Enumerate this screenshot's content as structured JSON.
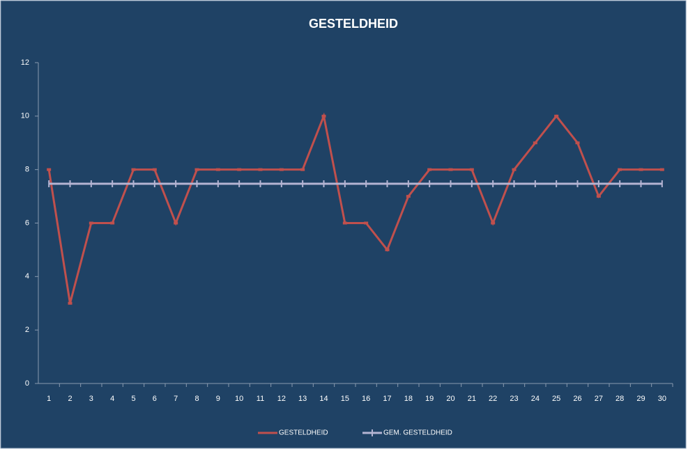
{
  "chart_data": {
    "type": "line",
    "title": "GESTELDHEID",
    "categories": [
      "1",
      "2",
      "3",
      "4",
      "5",
      "6",
      "7",
      "8",
      "9",
      "10",
      "11",
      "12",
      "13",
      "14",
      "15",
      "16",
      "17",
      "18",
      "19",
      "20",
      "21",
      "22",
      "23",
      "24",
      "25",
      "26",
      "27",
      "28",
      "29",
      "30"
    ],
    "series": [
      {
        "name": "GESTELDHEID",
        "color": "#c0504d",
        "values": [
          8,
          3,
          6,
          6,
          8,
          8,
          6,
          8,
          8,
          8,
          8,
          8,
          8,
          10,
          6,
          6,
          5,
          7,
          8,
          8,
          8,
          6,
          8,
          9,
          10,
          9,
          7,
          8,
          8,
          8
        ]
      },
      {
        "name": "GEM. GESTELDHEID",
        "color": "#b4b4d2",
        "values": [
          7.47,
          7.47,
          7.47,
          7.47,
          7.47,
          7.47,
          7.47,
          7.47,
          7.47,
          7.47,
          7.47,
          7.47,
          7.47,
          7.47,
          7.47,
          7.47,
          7.47,
          7.47,
          7.47,
          7.47,
          7.47,
          7.47,
          7.47,
          7.47,
          7.47,
          7.47,
          7.47,
          7.47,
          7.47,
          7.47
        ]
      }
    ],
    "ylim": [
      0,
      12
    ],
    "yticks": [
      0,
      2,
      4,
      6,
      8,
      10,
      12
    ],
    "grid": false,
    "legend": "bottom"
  }
}
